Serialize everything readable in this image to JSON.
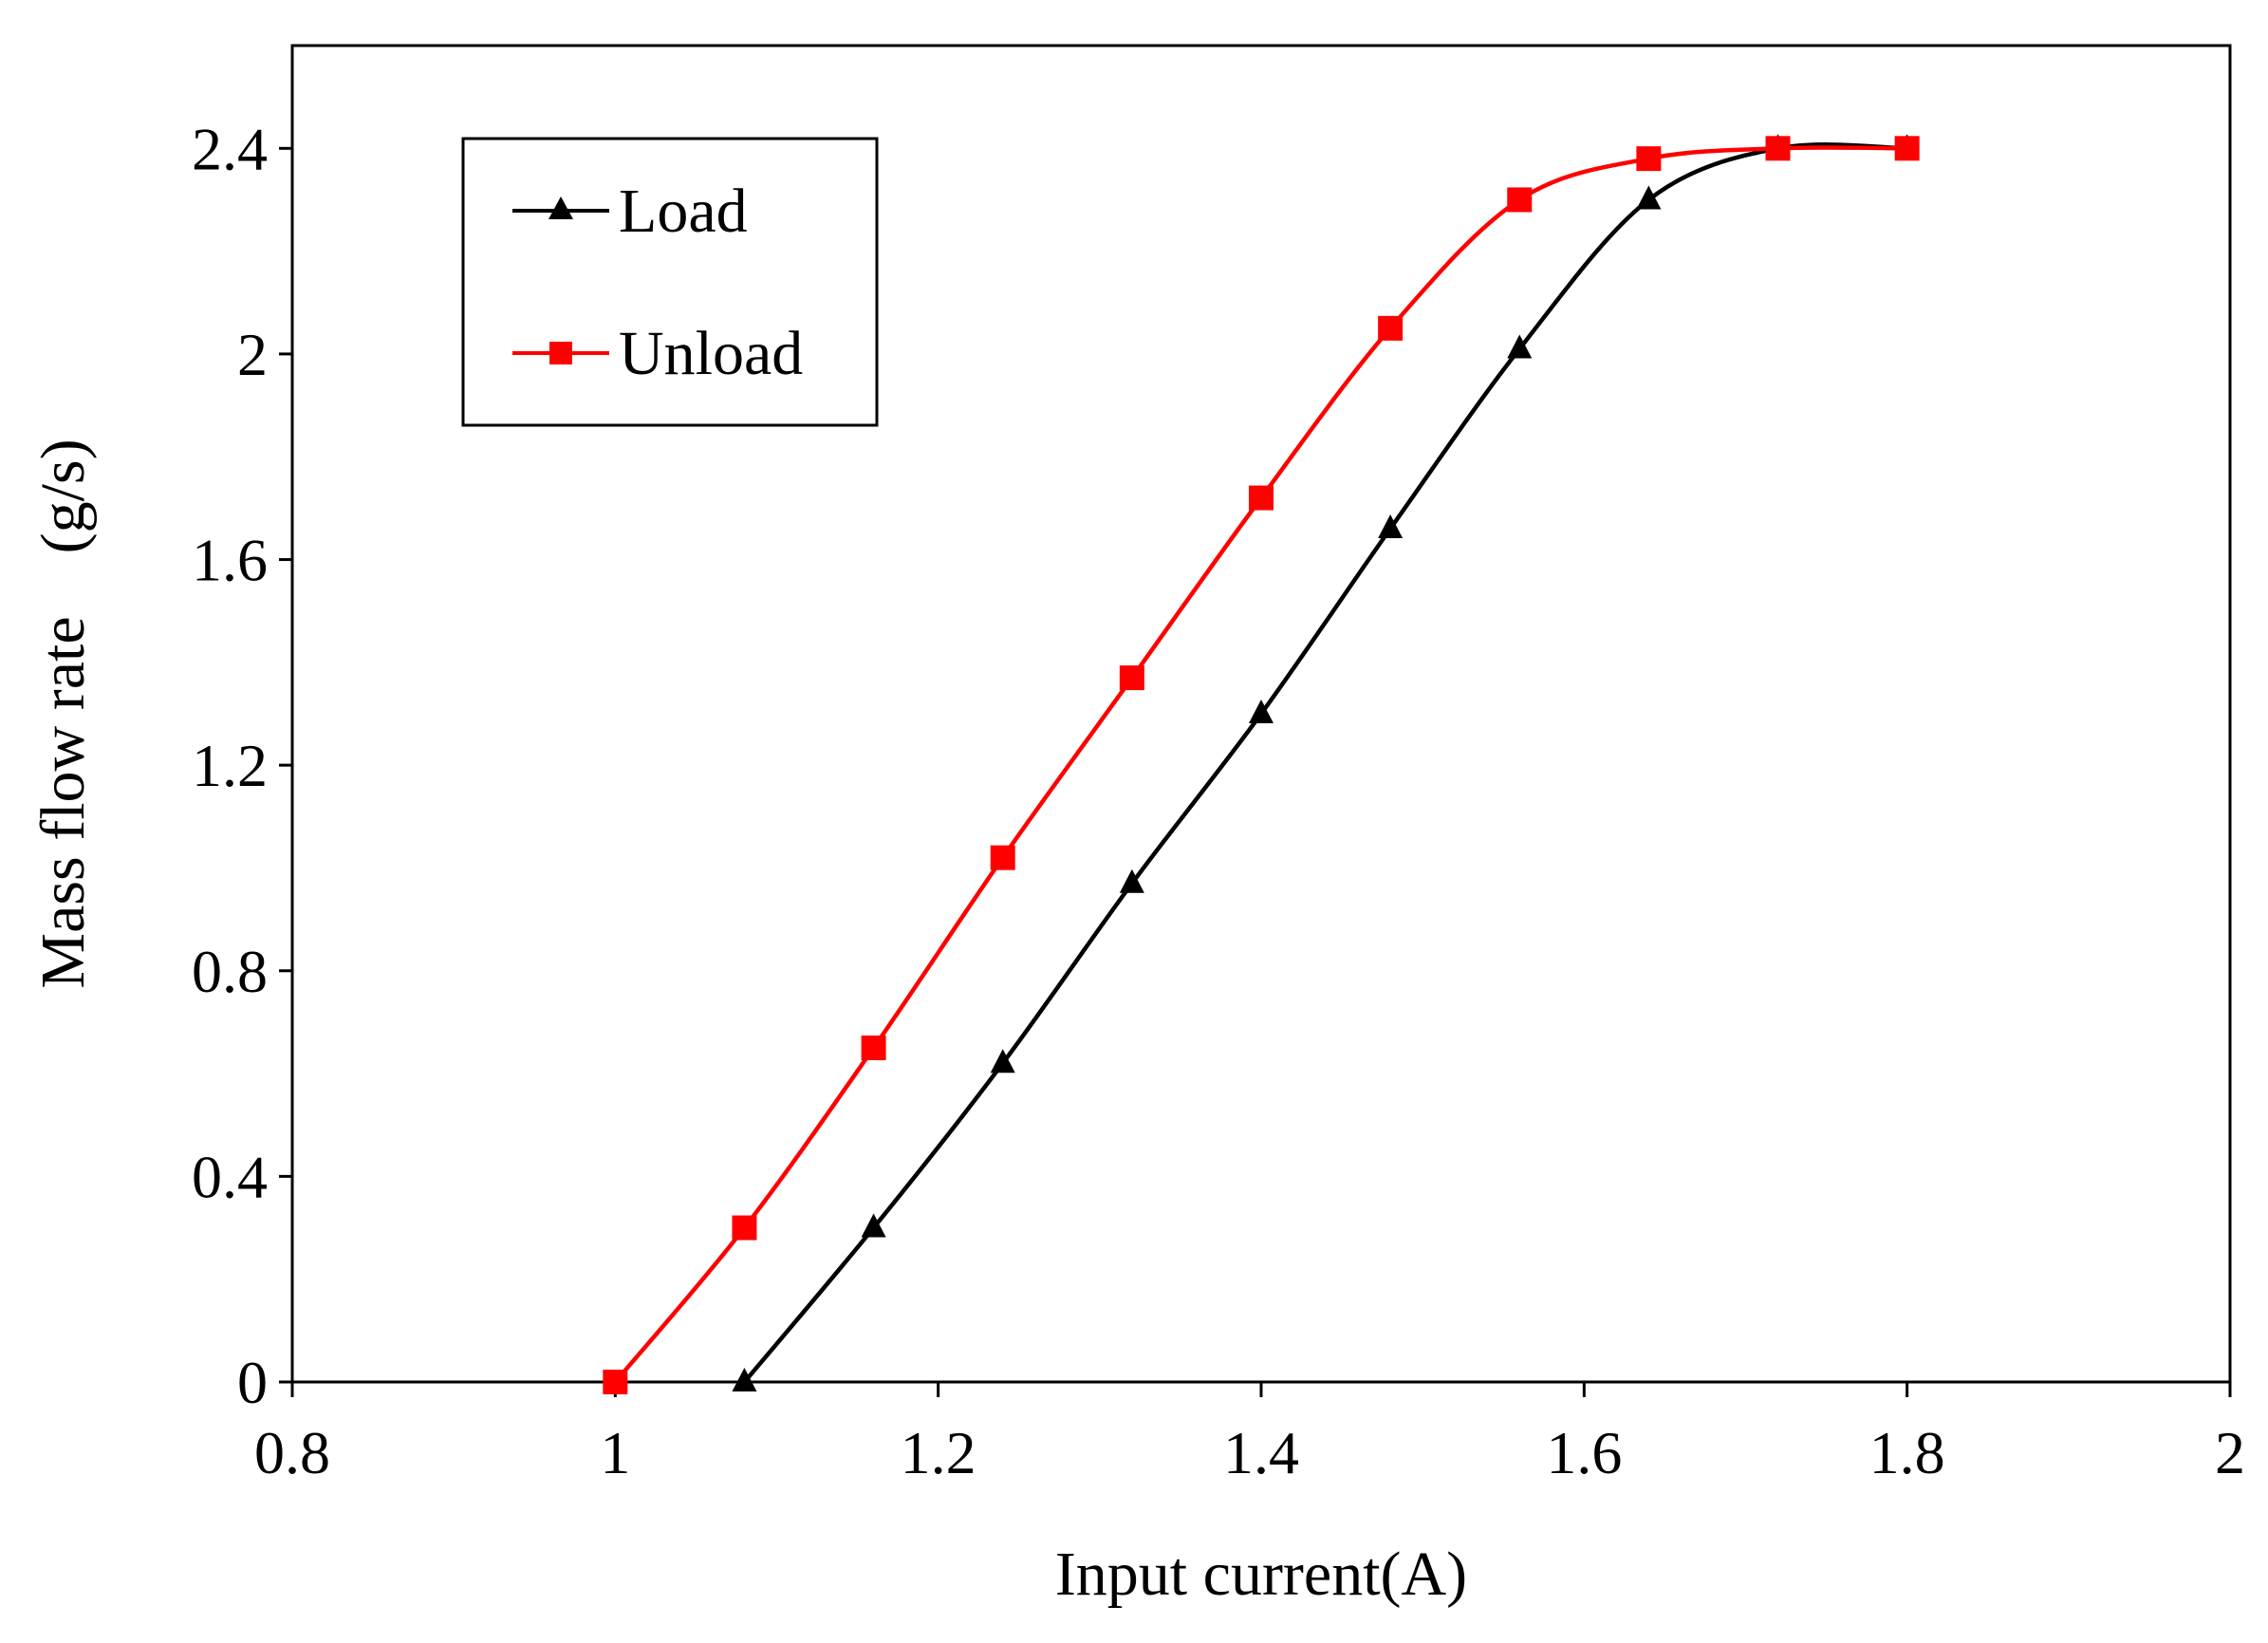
{
  "chart_data": {
    "type": "line",
    "title": "",
    "xlabel": "Input current(A)",
    "ylabel": "Mass flow rate　(g/s)",
    "xlim": [
      0.8,
      2.0
    ],
    "ylim": [
      0,
      2.6
    ],
    "x_ticks": [
      "0.8",
      "1",
      "1.2",
      "1.4",
      "1.6",
      "1.8",
      "2"
    ],
    "y_ticks": [
      "0",
      "0.4",
      "0.8",
      "1.2",
      "1.6",
      "2",
      "2.4"
    ],
    "x_tick_values": [
      0.8,
      1.0,
      1.2,
      1.4,
      1.6,
      1.8,
      2.0
    ],
    "y_tick_values": [
      0,
      0.4,
      0.8,
      1.2,
      1.6,
      2.0,
      2.4
    ],
    "grid": false,
    "legend_position": "top-left",
    "series": [
      {
        "name": "Load",
        "color": "#000000",
        "marker": "triangle",
        "x": [
          1.08,
          1.16,
          1.24,
          1.32,
          1.4,
          1.48,
          1.56,
          1.64,
          1.72,
          1.8
        ],
        "y": [
          0.0,
          0.3,
          0.62,
          0.97,
          1.3,
          1.66,
          2.01,
          2.3,
          2.4,
          2.4
        ]
      },
      {
        "name": "Unload",
        "color": "#ff0000",
        "marker": "square",
        "x": [
          1.0,
          1.08,
          1.16,
          1.24,
          1.32,
          1.4,
          1.48,
          1.56,
          1.64,
          1.72,
          1.8
        ],
        "y": [
          0.0,
          0.3,
          0.65,
          1.02,
          1.37,
          1.72,
          2.05,
          2.3,
          2.38,
          2.4,
          2.4
        ]
      }
    ]
  }
}
